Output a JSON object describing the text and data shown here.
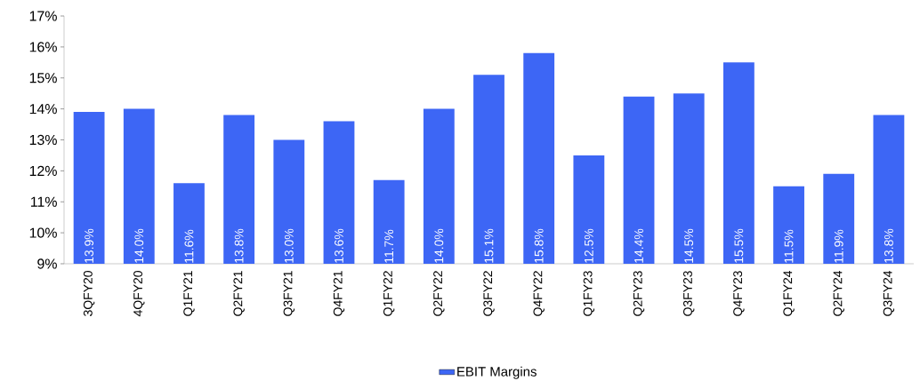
{
  "chart_data": {
    "type": "bar",
    "categories": [
      "3QFY20",
      "4QFY20",
      "Q1FY21",
      "Q2FY21",
      "Q3FY21",
      "Q4FY21",
      "Q1FY22",
      "Q2FY22",
      "Q3FY22",
      "Q4FY22",
      "Q1FY23",
      "Q2FY23",
      "Q3FY23",
      "Q4FY23",
      "Q1FY24",
      "Q2FY24",
      "Q3FY24"
    ],
    "series": [
      {
        "name": "EBIT Margins",
        "color": "#3d66f5",
        "values": [
          13.9,
          14.0,
          11.6,
          13.8,
          13.0,
          13.6,
          11.7,
          14.0,
          15.1,
          15.8,
          12.5,
          14.4,
          14.5,
          15.5,
          11.5,
          11.9,
          13.8
        ],
        "value_labels": [
          "13.9%",
          "14.0%",
          "11.6%",
          "13.8%",
          "13.0%",
          "13.6%",
          "11.7%",
          "14.0%",
          "15.1%",
          "15.8%",
          "12.5%",
          "14.4%",
          "14.5%",
          "15.5%",
          "11.5%",
          "11.9%",
          "13.8%"
        ]
      }
    ],
    "ylim": [
      9,
      17
    ],
    "yticks": [
      {
        "value": 9,
        "label": "9%"
      },
      {
        "value": 10,
        "label": "10%"
      },
      {
        "value": 11,
        "label": "11%"
      },
      {
        "value": 12,
        "label": "12%"
      },
      {
        "value": 13,
        "label": "13%"
      },
      {
        "value": 14,
        "label": "14%"
      },
      {
        "value": 15,
        "label": "15%"
      },
      {
        "value": 16,
        "label": "16%"
      },
      {
        "value": 17,
        "label": "17%"
      }
    ],
    "grid": false,
    "legend": "bottom"
  }
}
